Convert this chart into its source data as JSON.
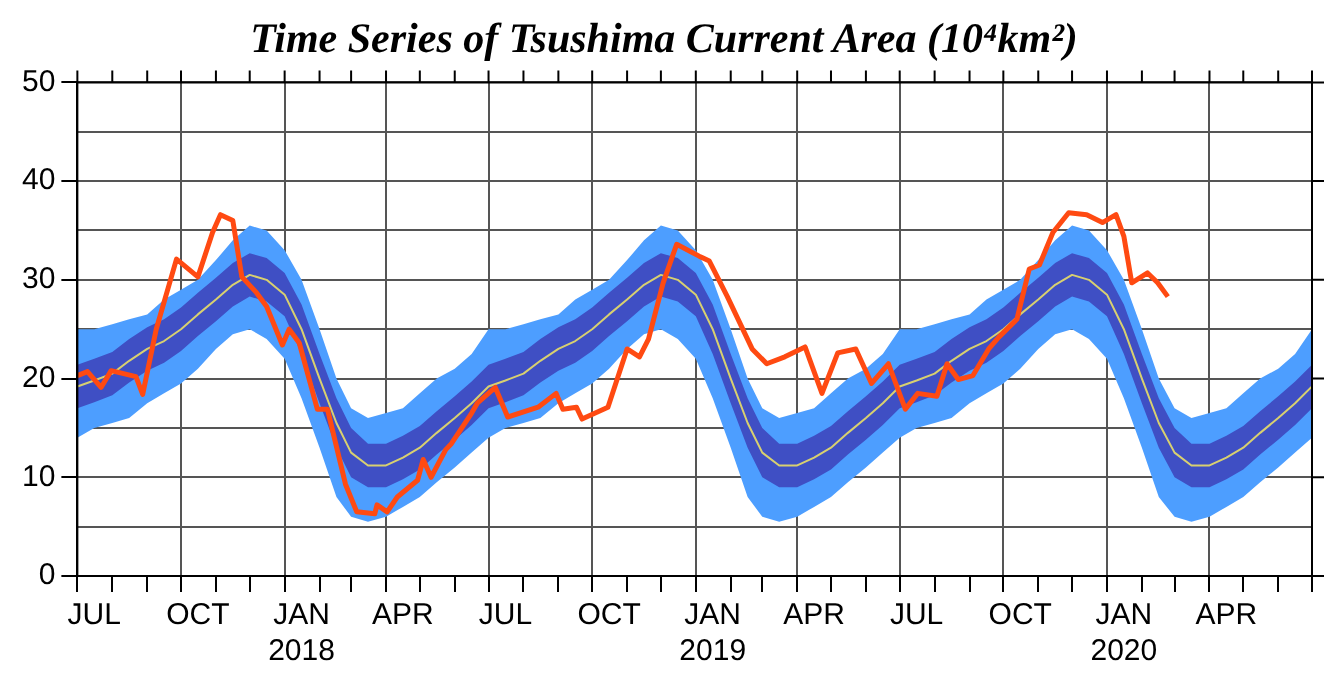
{
  "chart_data": {
    "type": "line",
    "title": "Time Series of Tsushima Current Area (10⁴km²)",
    "x": [
      "2017-07-01",
      "2017-07-16",
      "2017-08-01",
      "2017-08-16",
      "2017-09-01",
      "2017-09-16",
      "2017-10-01",
      "2017-10-16",
      "2017-11-01",
      "2017-11-16",
      "2017-12-01",
      "2017-12-16",
      "2018-01-01",
      "2018-01-16",
      "2018-02-01",
      "2018-02-16",
      "2018-03-01",
      "2018-03-16",
      "2018-04-01",
      "2018-04-16",
      "2018-05-01",
      "2018-05-16",
      "2018-06-01",
      "2018-06-16",
      "2018-07-01",
      "2018-07-16",
      "2018-08-01",
      "2018-08-16",
      "2018-09-01",
      "2018-09-16",
      "2018-10-01",
      "2018-10-16",
      "2018-11-01",
      "2018-11-16",
      "2018-12-01",
      "2018-12-16",
      "2019-01-01",
      "2019-01-16",
      "2019-02-01",
      "2019-02-16",
      "2019-03-01",
      "2019-03-16",
      "2019-04-01",
      "2019-04-16",
      "2019-05-01",
      "2019-05-16",
      "2019-06-01",
      "2019-06-16",
      "2019-07-01",
      "2019-07-16",
      "2019-08-01",
      "2019-08-16",
      "2019-09-01",
      "2019-09-16",
      "2019-10-01",
      "2019-10-16",
      "2019-11-01",
      "2019-11-16",
      "2019-12-01",
      "2019-12-16",
      "2020-01-01",
      "2020-01-16",
      "2020-02-01",
      "2020-02-16",
      "2020-03-01",
      "2020-03-16",
      "2020-04-01",
      "2020-04-16",
      "2020-05-01",
      "2020-05-16",
      "2020-06-01",
      "2020-06-16",
      "2020-07-01"
    ],
    "series": [
      {
        "color": "#4d9eff",
        "values": [
          null,
          null,
          null,
          null,
          null,
          null,
          null,
          null,
          null,
          null,
          null,
          null,
          null,
          null,
          null,
          null,
          null,
          null,
          null,
          null,
          null,
          null,
          null,
          null,
          null,
          null,
          null,
          null,
          null,
          null,
          null,
          null,
          null,
          null,
          null,
          null,
          null,
          null,
          null,
          null,
          null,
          null,
          null,
          null,
          null,
          null,
          null,
          null,
          null,
          null,
          null,
          null,
          null,
          null,
          null,
          null,
          null,
          null,
          null,
          null,
          null,
          null,
          null,
          null,
          null,
          null,
          null,
          null,
          null,
          null,
          null,
          null,
          null
        ],
        "upper": [
          25,
          25,
          25.5,
          26,
          26.5,
          28,
          29,
          30,
          32,
          34,
          35.5,
          35,
          33,
          30,
          25,
          20,
          17,
          16,
          16.5,
          17,
          18.5,
          20,
          21,
          22.5,
          25,
          25,
          25.5,
          26,
          26.5,
          28,
          29,
          30,
          32,
          34,
          35.5,
          35,
          33,
          30,
          25,
          20,
          17,
          16,
          16.5,
          17,
          18.5,
          20,
          21,
          22.5,
          25,
          25,
          25.5,
          26,
          26.5,
          28,
          29,
          30,
          32,
          34,
          35.5,
          35,
          33,
          30,
          25,
          20,
          17,
          16,
          16.5,
          17,
          18.5,
          20,
          21,
          22.5,
          25
        ],
        "lower": [
          14,
          15,
          15.5,
          16,
          17.5,
          18.5,
          19.5,
          21,
          23,
          24.5,
          25,
          24,
          22,
          18,
          13,
          8,
          6,
          5.5,
          6,
          7,
          8,
          9.5,
          11,
          12.5,
          14,
          15,
          15.5,
          16,
          17.5,
          18.5,
          19.5,
          21,
          23,
          24.5,
          25,
          24,
          22,
          18,
          13,
          8,
          6,
          5.5,
          6,
          7,
          8,
          9.5,
          11,
          12.5,
          14,
          15,
          15.5,
          16,
          17.5,
          18.5,
          19.5,
          21,
          23,
          24.5,
          25,
          24,
          22,
          18,
          13,
          8,
          6,
          5.5,
          6,
          7,
          8,
          9.5,
          11,
          12.5,
          14
        ]
      },
      {
        "color": "#3f4fc4",
        "values": [
          null,
          null,
          null,
          null,
          null,
          null,
          null,
          null,
          null,
          null,
          null,
          null,
          null,
          null,
          null,
          null,
          null,
          null,
          null,
          null,
          null,
          null,
          null,
          null,
          null,
          null,
          null,
          null,
          null,
          null,
          null,
          null,
          null,
          null,
          null,
          null,
          null,
          null,
          null,
          null,
          null,
          null,
          null,
          null,
          null,
          null,
          null,
          null,
          null,
          null,
          null,
          null,
          null,
          null,
          null,
          null,
          null,
          null,
          null,
          null,
          null,
          null,
          null,
          null,
          null,
          null,
          null,
          null,
          null,
          null,
          null,
          null,
          null
        ],
        "upper": [
          21.4,
          22,
          22.7,
          24,
          25.2,
          26,
          27.2,
          28.7,
          30.2,
          31.7,
          32.7,
          32.2,
          30.7,
          27.5,
          22.5,
          18,
          15,
          13.4,
          13.4,
          14.2,
          15.2,
          16.7,
          18.2,
          19.7,
          21.4,
          22,
          22.7,
          24,
          25.2,
          26,
          27.2,
          28.7,
          30.2,
          31.7,
          32.7,
          32.2,
          30.7,
          27.5,
          22.5,
          18,
          15,
          13.4,
          13.4,
          14.2,
          15.2,
          16.7,
          18.2,
          19.7,
          21.4,
          22,
          22.7,
          24,
          25.2,
          26,
          27.2,
          28.7,
          30.2,
          31.7,
          32.7,
          32.2,
          30.7,
          27.5,
          22.5,
          18,
          15,
          13.4,
          13.4,
          14.2,
          15.2,
          16.7,
          18.2,
          19.7,
          21.4
        ],
        "lower": [
          17,
          17.6,
          18.3,
          19.6,
          20.8,
          21.6,
          22.8,
          24.3,
          25.8,
          27.3,
          28.3,
          27.8,
          26.3,
          22.5,
          17.5,
          13,
          10,
          9,
          9,
          9.8,
          10.8,
          12.3,
          13.8,
          15.3,
          17,
          17.6,
          18.3,
          19.6,
          20.8,
          21.6,
          22.8,
          24.3,
          25.8,
          27.3,
          28.3,
          27.8,
          26.3,
          22.5,
          17.5,
          13,
          10,
          9,
          9,
          9.8,
          10.8,
          12.3,
          13.8,
          15.3,
          17,
          17.6,
          18.3,
          19.6,
          20.8,
          21.6,
          22.8,
          24.3,
          25.8,
          27.3,
          28.3,
          27.8,
          26.3,
          22.5,
          17.5,
          13,
          10,
          9,
          9,
          9.8,
          10.8,
          12.3,
          13.8,
          15.3,
          17
        ]
      },
      {
        "color": "#d8d070",
        "values": [
          19.2,
          19.8,
          20.5,
          21.8,
          23,
          23.8,
          25,
          26.5,
          28,
          29.5,
          30.5,
          30,
          28.5,
          25,
          20,
          15.5,
          12.5,
          11.2,
          11.2,
          12,
          13,
          14.5,
          16,
          17.5,
          19.2,
          19.8,
          20.5,
          21.8,
          23,
          23.8,
          25,
          26.5,
          28,
          29.5,
          30.5,
          30,
          28.5,
          25,
          20,
          15.5,
          12.5,
          11.2,
          11.2,
          12,
          13,
          14.5,
          16,
          17.5,
          19.2,
          19.8,
          20.5,
          21.8,
          23,
          23.8,
          25,
          26.5,
          28,
          29.5,
          30.5,
          30,
          28.5,
          25,
          20,
          15.5,
          12.5,
          11.2,
          11.2,
          12,
          13,
          14.5,
          16,
          17.5,
          19.2
        ]
      },
      {
        "color": "#ff4a12",
        "x": [
          "2017-07-01",
          "2017-07-10",
          "2017-07-22",
          "2017-07-31",
          "2017-08-22",
          "2017-08-28",
          "2017-09-09",
          "2017-09-27",
          "2017-10-16",
          "2017-10-29",
          "2017-11-05",
          "2017-11-16",
          "2017-11-24",
          "2017-12-07",
          "2017-12-16",
          "2017-12-30",
          "2018-01-05",
          "2018-01-14",
          "2018-01-30",
          "2018-02-08",
          "2018-02-24",
          "2018-03-06",
          "2018-03-22",
          "2018-03-24",
          "2018-04-02",
          "2018-04-11",
          "2018-04-29",
          "2018-05-04",
          "2018-05-11",
          "2018-05-24",
          "2018-05-29",
          "2018-06-16",
          "2018-06-21",
          "2018-07-07",
          "2018-07-18",
          "2018-08-14",
          "2018-08-30",
          "2018-09-05",
          "2018-09-17",
          "2018-09-22",
          "2018-10-15",
          "2018-11-01",
          "2018-11-12",
          "2018-11-20",
          "2018-12-03",
          "2018-12-15",
          "2019-01-04",
          "2019-01-13",
          "2019-01-29",
          "2019-02-20",
          "2019-03-05",
          "2019-03-21",
          "2019-04-08",
          "2019-04-23",
          "2019-05-07",
          "2019-05-23",
          "2019-06-06",
          "2019-06-21",
          "2019-07-06",
          "2019-07-17",
          "2019-08-03",
          "2019-08-12",
          "2019-08-22",
          "2019-09-04",
          "2019-09-18",
          "2019-09-27",
          "2019-10-13",
          "2019-10-24",
          "2019-11-02",
          "2019-11-14",
          "2019-11-28",
          "2019-12-14",
          "2019-12-28",
          "2020-01-09",
          "2020-01-16",
          "2020-01-23",
          "2020-02-06",
          "2020-02-15",
          "2020-02-24"
        ],
        "values": [
          20.3,
          20.7,
          19.1,
          20.8,
          20.2,
          18.4,
          25,
          32.1,
          30.3,
          34.8,
          36.6,
          36,
          30.3,
          28.7,
          27.3,
          23.4,
          25,
          23.6,
          16.9,
          16.9,
          9.3,
          6.5,
          6.3,
          7.2,
          6.5,
          8,
          9.7,
          11.8,
          10,
          12.8,
          13.4,
          16.5,
          17.5,
          19.1,
          16.1,
          17.1,
          18.5,
          16.9,
          17.1,
          15.9,
          17.1,
          23,
          22.2,
          24,
          29.7,
          33.6,
          32.4,
          31.9,
          28.3,
          23,
          21.5,
          22.2,
          23.2,
          18.5,
          22.6,
          23,
          19.5,
          21.5,
          16.9,
          18.5,
          18.2,
          21.5,
          19.9,
          20.3,
          23,
          24.2,
          26,
          31.1,
          31.5,
          34.8,
          36.8,
          36.6,
          35.8,
          36.6,
          34.4,
          29.7,
          30.7,
          29.7,
          28.3
        ]
      }
    ],
    "xlim": [
      "2017-07-01",
      "2020-07-01"
    ],
    "xticks": [
      {
        "value": "2017-07-01",
        "label": null
      },
      {
        "value": "2017-07-16",
        "label": "JUL"
      },
      {
        "value": "2017-08-01",
        "label": null
      },
      {
        "value": "2017-09-01",
        "label": null
      },
      {
        "value": "2017-10-01",
        "label": null
      },
      {
        "value": "2017-10-16",
        "label": "OCT"
      },
      {
        "value": "2017-11-01",
        "label": null
      },
      {
        "value": "2017-12-01",
        "label": null
      },
      {
        "value": "2018-01-01",
        "label": null
      },
      {
        "value": "2018-01-16",
        "label": "JAN\n2018"
      },
      {
        "value": "2018-02-01",
        "label": null
      },
      {
        "value": "2018-03-01",
        "label": null
      },
      {
        "value": "2018-04-01",
        "label": null
      },
      {
        "value": "2018-04-16",
        "label": "APR"
      },
      {
        "value": "2018-05-01",
        "label": null
      },
      {
        "value": "2018-06-01",
        "label": null
      },
      {
        "value": "2018-07-01",
        "label": null
      },
      {
        "value": "2018-07-16",
        "label": "JUL"
      },
      {
        "value": "2018-08-01",
        "label": null
      },
      {
        "value": "2018-09-01",
        "label": null
      },
      {
        "value": "2018-10-01",
        "label": null
      },
      {
        "value": "2018-10-16",
        "label": "OCT"
      },
      {
        "value": "2018-11-01",
        "label": null
      },
      {
        "value": "2018-12-01",
        "label": null
      },
      {
        "value": "2019-01-01",
        "label": null
      },
      {
        "value": "2019-01-16",
        "label": "JAN\n2019"
      },
      {
        "value": "2019-02-01",
        "label": null
      },
      {
        "value": "2019-03-01",
        "label": null
      },
      {
        "value": "2019-04-01",
        "label": null
      },
      {
        "value": "2019-04-16",
        "label": "APR"
      },
      {
        "value": "2019-05-01",
        "label": null
      },
      {
        "value": "2019-06-01",
        "label": null
      },
      {
        "value": "2019-07-01",
        "label": null
      },
      {
        "value": "2019-07-16",
        "label": "JUL"
      },
      {
        "value": "2019-08-01",
        "label": null
      },
      {
        "value": "2019-09-01",
        "label": null
      },
      {
        "value": "2019-10-01",
        "label": null
      },
      {
        "value": "2019-10-16",
        "label": "OCT"
      },
      {
        "value": "2019-11-01",
        "label": null
      },
      {
        "value": "2019-12-01",
        "label": null
      },
      {
        "value": "2020-01-01",
        "label": null
      },
      {
        "value": "2020-01-16",
        "label": "JAN\n2020"
      },
      {
        "value": "2020-02-01",
        "label": null
      },
      {
        "value": "2020-03-01",
        "label": null
      },
      {
        "value": "2020-04-01",
        "label": null
      },
      {
        "value": "2020-04-16",
        "label": "APR"
      },
      {
        "value": "2020-05-01",
        "label": null
      },
      {
        "value": "2020-06-01",
        "label": null
      },
      {
        "value": "2020-07-01",
        "label": null
      }
    ],
    "ylim": [
      0,
      50
    ],
    "yticks": [
      0,
      {
        "value": 5,
        "label": null
      },
      10,
      {
        "value": 15,
        "label": null
      },
      20,
      {
        "value": 25,
        "label": null
      },
      30,
      {
        "value": 35,
        "label": null
      },
      40,
      {
        "value": 45,
        "label": null
      },
      50
    ],
    "grid": true,
    "marker": "none",
    "line_style": "solid"
  }
}
